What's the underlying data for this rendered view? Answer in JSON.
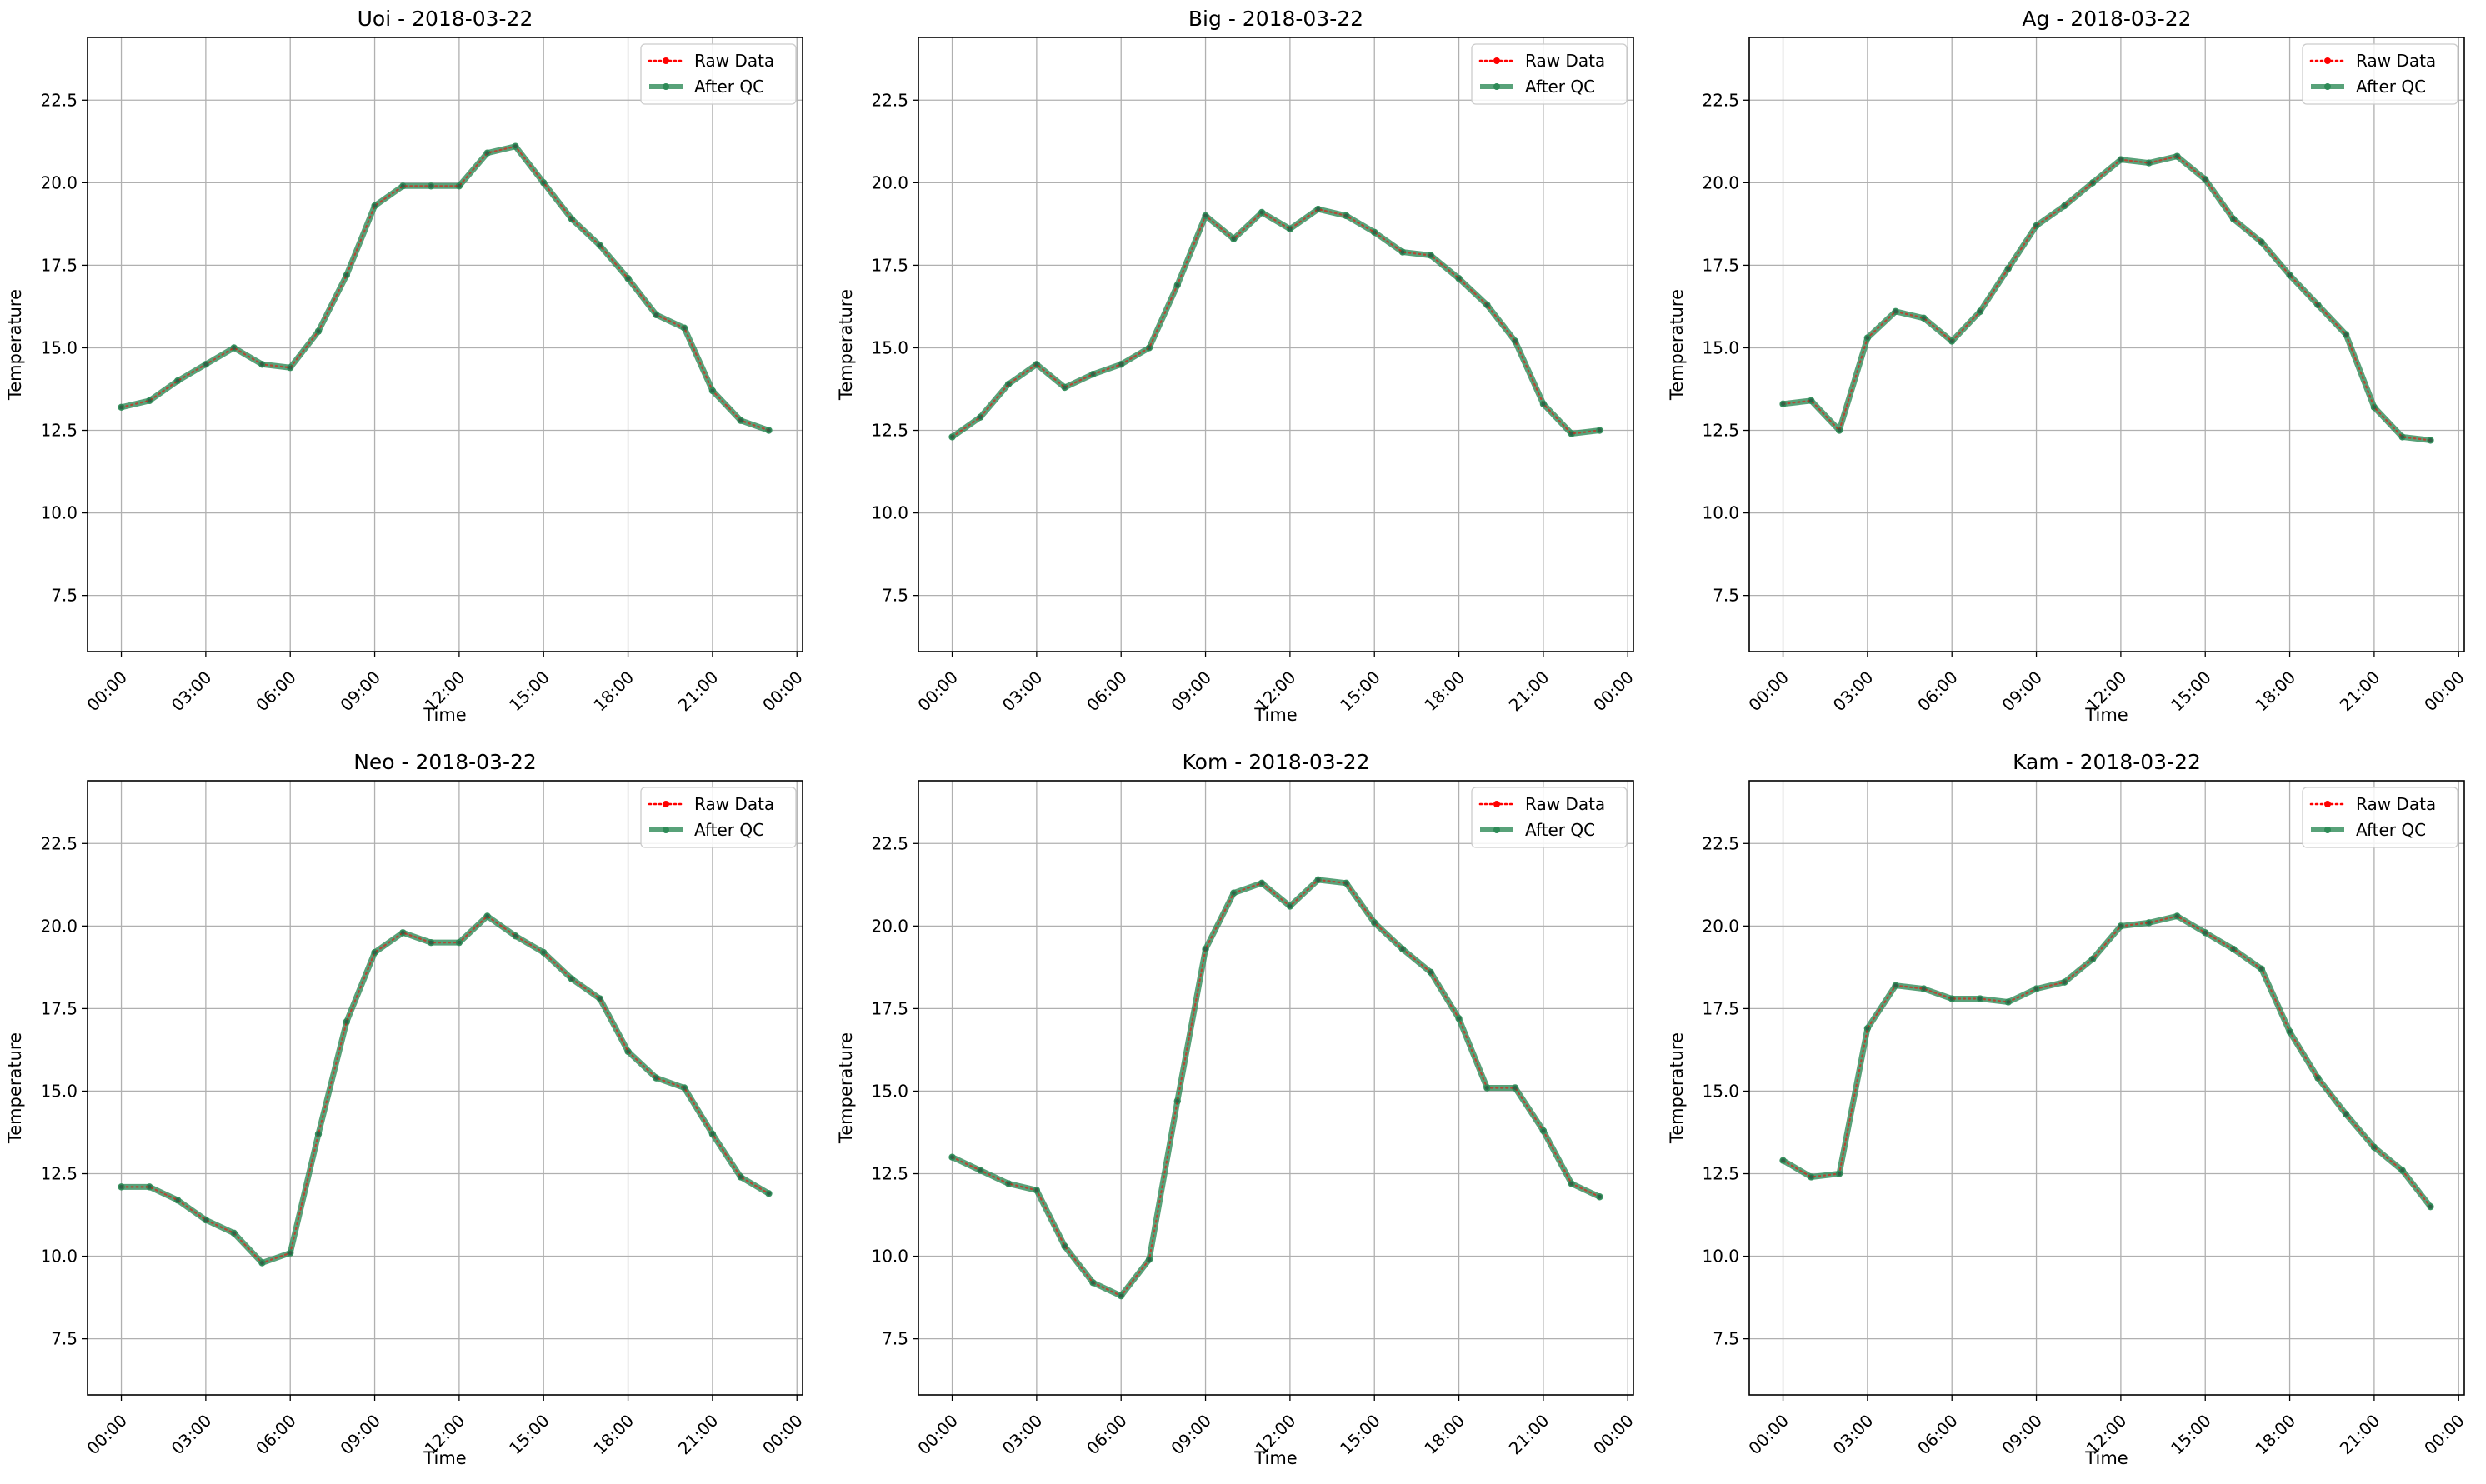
{
  "colors": {
    "raw": "#ff0000",
    "after_qc": "#2e8b57",
    "grid": "#b0b0b0",
    "axes": "#000000",
    "legend_frame": "#cccccc"
  },
  "chart_data": [
    {
      "type": "line",
      "title": "Uoi - 2018-03-22",
      "xlabel": "Time",
      "ylabel": "Temperature",
      "x_ticks": [
        "00:00",
        "03:00",
        "06:00",
        "09:00",
        "12:00",
        "15:00",
        "18:00",
        "21:00",
        "00:00"
      ],
      "x_hours": [
        0,
        1,
        2,
        3,
        4,
        5,
        6,
        7,
        8,
        9,
        10,
        11,
        12,
        13,
        14,
        15,
        16,
        17,
        18,
        19,
        20,
        21,
        22,
        23
      ],
      "xlim": [
        -1.2,
        24.2
      ],
      "y_ticks": [
        "7.5",
        "10.0",
        "12.5",
        "15.0",
        "17.5",
        "20.0",
        "22.5"
      ],
      "ylim": [
        5.8,
        24.4
      ],
      "grid": true,
      "legend_position": "upper right",
      "series": [
        {
          "name": "Raw Data",
          "style": "dotted",
          "marker": "circle",
          "values": [
            13.2,
            13.4,
            14.0,
            14.5,
            15.0,
            14.5,
            14.4,
            15.5,
            17.2,
            19.3,
            19.9,
            19.9,
            19.9,
            20.9,
            21.1,
            20.0,
            18.9,
            18.1,
            17.1,
            16.0,
            15.6,
            13.7,
            12.8,
            12.5
          ]
        },
        {
          "name": "After QC",
          "style": "solid",
          "marker": "circle",
          "values": [
            13.2,
            13.4,
            14.0,
            14.5,
            15.0,
            14.5,
            14.4,
            15.5,
            17.2,
            19.3,
            19.9,
            19.9,
            19.9,
            20.9,
            21.1,
            20.0,
            18.9,
            18.1,
            17.1,
            16.0,
            15.6,
            13.7,
            12.8,
            12.5
          ]
        }
      ]
    },
    {
      "type": "line",
      "title": "Big - 2018-03-22",
      "xlabel": "Time",
      "ylabel": "Temperature",
      "x_ticks": [
        "00:00",
        "03:00",
        "06:00",
        "09:00",
        "12:00",
        "15:00",
        "18:00",
        "21:00",
        "00:00"
      ],
      "x_hours": [
        0,
        1,
        2,
        3,
        4,
        5,
        6,
        7,
        8,
        9,
        10,
        11,
        12,
        13,
        14,
        15,
        16,
        17,
        18,
        19,
        20,
        21,
        22,
        23
      ],
      "xlim": [
        -1.2,
        24.2
      ],
      "y_ticks": [
        "7.5",
        "10.0",
        "12.5",
        "15.0",
        "17.5",
        "20.0",
        "22.5"
      ],
      "ylim": [
        5.8,
        24.4
      ],
      "grid": true,
      "legend_position": "upper right",
      "series": [
        {
          "name": "Raw Data",
          "style": "dotted",
          "marker": "circle",
          "values": [
            12.3,
            12.9,
            13.9,
            14.5,
            13.8,
            14.2,
            14.5,
            15.0,
            16.9,
            19.0,
            18.3,
            19.1,
            18.6,
            19.2,
            19.0,
            18.5,
            17.9,
            17.8,
            17.1,
            16.3,
            15.2,
            13.3,
            12.4,
            12.5
          ]
        },
        {
          "name": "After QC",
          "style": "solid",
          "marker": "circle",
          "values": [
            12.3,
            12.9,
            13.9,
            14.5,
            13.8,
            14.2,
            14.5,
            15.0,
            16.9,
            19.0,
            18.3,
            19.1,
            18.6,
            19.2,
            19.0,
            18.5,
            17.9,
            17.8,
            17.1,
            16.3,
            15.2,
            13.3,
            12.4,
            12.5
          ]
        }
      ]
    },
    {
      "type": "line",
      "title": "Ag - 2018-03-22",
      "xlabel": "Time",
      "ylabel": "Temperature",
      "x_ticks": [
        "00:00",
        "03:00",
        "06:00",
        "09:00",
        "12:00",
        "15:00",
        "18:00",
        "21:00",
        "00:00"
      ],
      "x_hours": [
        0,
        1,
        2,
        3,
        4,
        5,
        6,
        7,
        8,
        9,
        10,
        11,
        12,
        13,
        14,
        15,
        16,
        17,
        18,
        19,
        20,
        21,
        22,
        23
      ],
      "xlim": [
        -1.2,
        24.2
      ],
      "y_ticks": [
        "7.5",
        "10.0",
        "12.5",
        "15.0",
        "17.5",
        "20.0",
        "22.5"
      ],
      "ylim": [
        5.8,
        24.4
      ],
      "grid": true,
      "legend_position": "upper right",
      "series": [
        {
          "name": "Raw Data",
          "style": "dotted",
          "marker": "circle",
          "values": [
            13.3,
            13.4,
            12.5,
            15.3,
            16.1,
            15.9,
            15.2,
            16.1,
            17.4,
            18.7,
            19.3,
            20.0,
            20.7,
            20.6,
            20.8,
            20.1,
            18.9,
            18.2,
            17.2,
            16.3,
            15.4,
            13.2,
            12.3,
            12.2
          ]
        },
        {
          "name": "After QC",
          "style": "solid",
          "marker": "circle",
          "values": [
            13.3,
            13.4,
            12.5,
            15.3,
            16.1,
            15.9,
            15.2,
            16.1,
            17.4,
            18.7,
            19.3,
            20.0,
            20.7,
            20.6,
            20.8,
            20.1,
            18.9,
            18.2,
            17.2,
            16.3,
            15.4,
            13.2,
            12.3,
            12.2
          ]
        }
      ]
    },
    {
      "type": "line",
      "title": "Neo - 2018-03-22",
      "xlabel": "Time",
      "ylabel": "Temperature",
      "x_ticks": [
        "00:00",
        "03:00",
        "06:00",
        "09:00",
        "12:00",
        "15:00",
        "18:00",
        "21:00",
        "00:00"
      ],
      "x_hours": [
        0,
        1,
        2,
        3,
        4,
        5,
        6,
        7,
        8,
        9,
        10,
        11,
        12,
        13,
        14,
        15,
        16,
        17,
        18,
        19,
        20,
        21,
        22,
        23
      ],
      "xlim": [
        -1.2,
        24.2
      ],
      "y_ticks": [
        "7.5",
        "10.0",
        "12.5",
        "15.0",
        "17.5",
        "20.0",
        "22.5"
      ],
      "ylim": [
        5.8,
        24.4
      ],
      "grid": true,
      "legend_position": "upper right",
      "series": [
        {
          "name": "Raw Data",
          "style": "dotted",
          "marker": "circle",
          "values": [
            12.1,
            12.1,
            11.7,
            11.1,
            10.7,
            9.8,
            10.1,
            13.7,
            17.1,
            19.2,
            19.8,
            19.5,
            19.5,
            20.3,
            19.7,
            19.2,
            18.4,
            17.8,
            16.2,
            15.4,
            15.1,
            13.7,
            12.4,
            11.9
          ]
        },
        {
          "name": "After QC",
          "style": "solid",
          "marker": "circle",
          "values": [
            12.1,
            12.1,
            11.7,
            11.1,
            10.7,
            9.8,
            10.1,
            13.7,
            17.1,
            19.2,
            19.8,
            19.5,
            19.5,
            20.3,
            19.7,
            19.2,
            18.4,
            17.8,
            16.2,
            15.4,
            15.1,
            13.7,
            12.4,
            11.9
          ]
        }
      ]
    },
    {
      "type": "line",
      "title": "Kom - 2018-03-22",
      "xlabel": "Time",
      "ylabel": "Temperature",
      "x_ticks": [
        "00:00",
        "03:00",
        "06:00",
        "09:00",
        "12:00",
        "15:00",
        "18:00",
        "21:00",
        "00:00"
      ],
      "x_hours": [
        0,
        1,
        2,
        3,
        4,
        5,
        6,
        7,
        8,
        9,
        10,
        11,
        12,
        13,
        14,
        15,
        16,
        17,
        18,
        19,
        20,
        21,
        22,
        23
      ],
      "xlim": [
        -1.2,
        24.2
      ],
      "y_ticks": [
        "7.5",
        "10.0",
        "12.5",
        "15.0",
        "17.5",
        "20.0",
        "22.5"
      ],
      "ylim": [
        5.8,
        24.4
      ],
      "grid": true,
      "legend_position": "upper right",
      "series": [
        {
          "name": "Raw Data",
          "style": "dotted",
          "marker": "circle",
          "values": [
            13.0,
            12.6,
            12.2,
            12.0,
            10.3,
            9.2,
            8.8,
            9.9,
            14.7,
            19.3,
            21.0,
            21.3,
            20.6,
            21.4,
            21.3,
            20.1,
            19.3,
            18.6,
            17.2,
            15.1,
            15.1,
            13.8,
            12.2,
            11.8
          ]
        },
        {
          "name": "After QC",
          "style": "solid",
          "marker": "circle",
          "values": [
            13.0,
            12.6,
            12.2,
            12.0,
            10.3,
            9.2,
            8.8,
            9.9,
            14.7,
            19.3,
            21.0,
            21.3,
            20.6,
            21.4,
            21.3,
            20.1,
            19.3,
            18.6,
            17.2,
            15.1,
            15.1,
            13.8,
            12.2,
            11.8
          ]
        }
      ]
    },
    {
      "type": "line",
      "title": "Kam - 2018-03-22",
      "xlabel": "Time",
      "ylabel": "Temperature",
      "x_ticks": [
        "00:00",
        "03:00",
        "06:00",
        "09:00",
        "12:00",
        "15:00",
        "18:00",
        "21:00",
        "00:00"
      ],
      "x_hours": [
        0,
        1,
        2,
        3,
        4,
        5,
        6,
        7,
        8,
        9,
        10,
        11,
        12,
        13,
        14,
        15,
        16,
        17,
        18,
        19,
        20,
        21,
        22,
        23
      ],
      "xlim": [
        -1.2,
        24.2
      ],
      "y_ticks": [
        "7.5",
        "10.0",
        "12.5",
        "15.0",
        "17.5",
        "20.0",
        "22.5"
      ],
      "ylim": [
        5.8,
        24.4
      ],
      "grid": true,
      "legend_position": "upper right",
      "series": [
        {
          "name": "Raw Data",
          "style": "dotted",
          "marker": "circle",
          "values": [
            12.9,
            12.4,
            12.5,
            16.9,
            18.2,
            18.1,
            17.8,
            17.8,
            17.7,
            18.1,
            18.3,
            19.0,
            20.0,
            20.1,
            20.3,
            19.8,
            19.3,
            18.7,
            16.8,
            15.4,
            14.3,
            13.3,
            12.6,
            11.5
          ]
        },
        {
          "name": "After QC",
          "style": "solid",
          "marker": "circle",
          "values": [
            12.9,
            12.4,
            12.5,
            16.9,
            18.2,
            18.1,
            17.8,
            17.8,
            17.7,
            18.1,
            18.3,
            19.0,
            20.0,
            20.1,
            20.3,
            19.8,
            19.3,
            18.7,
            16.8,
            15.4,
            14.3,
            13.3,
            12.6,
            11.5
          ]
        }
      ]
    }
  ]
}
